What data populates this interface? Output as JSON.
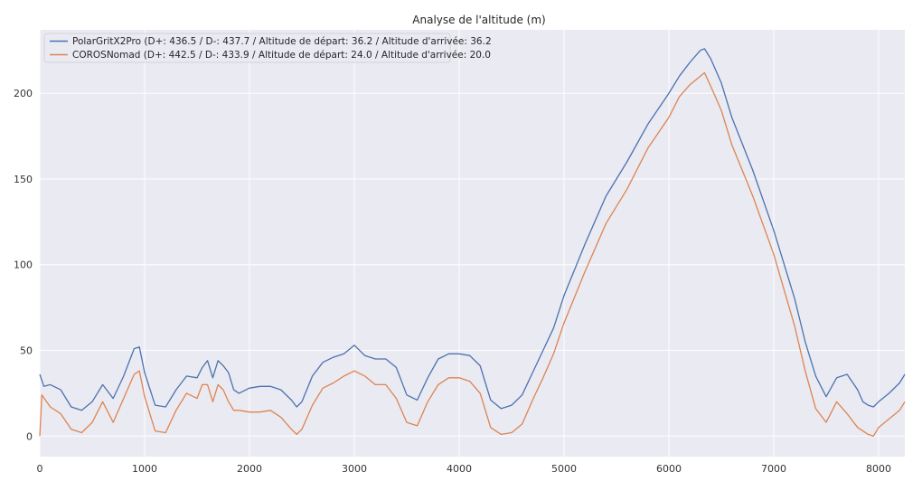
{
  "chart_data": {
    "type": "line",
    "title": "Analyse de l'altitude (m)",
    "xlabel": "",
    "ylabel": "",
    "xlim": [
      0,
      8250
    ],
    "ylim": [
      -12,
      237
    ],
    "xticks": [
      0,
      1000,
      2000,
      3000,
      4000,
      5000,
      6000,
      7000,
      8000
    ],
    "yticks": [
      0,
      50,
      100,
      150,
      200
    ],
    "grid": true,
    "legend_position": "top-left",
    "background": "#eaeaf2",
    "series": [
      {
        "name": "PolarGritX2Pro (D+: 436.5 / D-: 437.7 / Altitude de départ: 36.2 / Altitude d'arrivée: 36.2",
        "color": "#4c72b0",
        "x": [
          0,
          40,
          100,
          200,
          300,
          400,
          500,
          600,
          700,
          800,
          900,
          950,
          1000,
          1100,
          1200,
          1300,
          1400,
          1500,
          1550,
          1600,
          1650,
          1700,
          1750,
          1800,
          1850,
          1900,
          2000,
          2100,
          2200,
          2300,
          2400,
          2450,
          2500,
          2600,
          2700,
          2800,
          2900,
          3000,
          3100,
          3200,
          3300,
          3400,
          3500,
          3600,
          3700,
          3800,
          3900,
          4000,
          4100,
          4200,
          4300,
          4400,
          4500,
          4600,
          4700,
          4800,
          4900,
          5000,
          5200,
          5400,
          5600,
          5800,
          6000,
          6100,
          6200,
          6300,
          6340,
          6400,
          6500,
          6600,
          6800,
          7000,
          7200,
          7300,
          7400,
          7500,
          7600,
          7700,
          7800,
          7850,
          7900,
          7950,
          8000,
          8100,
          8200,
          8250
        ],
        "values": [
          36,
          29,
          30,
          27,
          17,
          15,
          20,
          30,
          22,
          35,
          51,
          52,
          37,
          18,
          17,
          27,
          35,
          34,
          40,
          44,
          34,
          44,
          41,
          37,
          27,
          25,
          28,
          29,
          29,
          27,
          21,
          17,
          20,
          35,
          43,
          46,
          48,
          53,
          47,
          45,
          45,
          40,
          24,
          21,
          34,
          45,
          48,
          48,
          47,
          41,
          21,
          16,
          18,
          24,
          37,
          50,
          63,
          82,
          112,
          140,
          160,
          182,
          200,
          210,
          218,
          225,
          226,
          220,
          206,
          186,
          155,
          120,
          80,
          55,
          35,
          23,
          34,
          36,
          27,
          20,
          18,
          17,
          20,
          25,
          31,
          36
        ]
      },
      {
        "name": "COROSNomad (D+: 442.5 / D-: 433.9 / Altitude de départ: 24.0 / Altitude d'arrivée: 20.0",
        "color": "#dd8452",
        "x": [
          0,
          20,
          100,
          200,
          300,
          400,
          500,
          600,
          700,
          800,
          900,
          950,
          1000,
          1100,
          1200,
          1300,
          1400,
          1500,
          1550,
          1600,
          1650,
          1700,
          1750,
          1800,
          1850,
          1900,
          2000,
          2100,
          2200,
          2300,
          2400,
          2450,
          2500,
          2600,
          2700,
          2800,
          2900,
          3000,
          3100,
          3200,
          3300,
          3400,
          3500,
          3600,
          3700,
          3800,
          3900,
          4000,
          4100,
          4200,
          4300,
          4400,
          4500,
          4600,
          4700,
          4800,
          4900,
          5000,
          5200,
          5400,
          5600,
          5800,
          6000,
          6100,
          6200,
          6300,
          6340,
          6400,
          6500,
          6600,
          6800,
          7000,
          7200,
          7300,
          7400,
          7500,
          7600,
          7700,
          7800,
          7850,
          7900,
          7950,
          8000,
          8100,
          8200,
          8250
        ],
        "values": [
          0,
          24,
          17,
          13,
          4,
          2,
          8,
          20,
          8,
          22,
          36,
          38,
          23,
          3,
          2,
          15,
          25,
          22,
          30,
          30,
          20,
          30,
          27,
          20,
          15,
          15,
          14,
          14,
          15,
          11,
          4,
          1,
          4,
          18,
          28,
          31,
          35,
          38,
          35,
          30,
          30,
          22,
          8,
          6,
          20,
          30,
          34,
          34,
          32,
          25,
          5,
          1,
          2,
          7,
          21,
          34,
          48,
          66,
          96,
          124,
          144,
          168,
          186,
          198,
          205,
          210,
          212,
          204,
          190,
          170,
          140,
          106,
          64,
          38,
          16,
          8,
          20,
          13,
          5,
          3,
          1,
          0,
          5,
          10,
          15,
          20
        ]
      }
    ]
  }
}
